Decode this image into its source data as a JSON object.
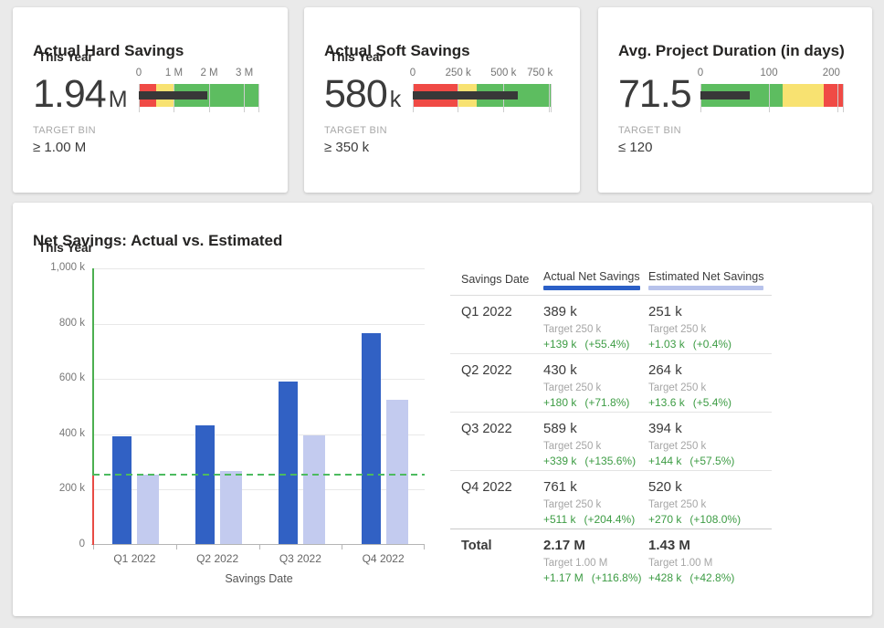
{
  "colors": {
    "background": "#eaeaea",
    "card_accent_green": "#4aa84e",
    "status_red": "#f04a45",
    "status_yellow": "#f8e271",
    "status_green": "#5dbd60",
    "measure_bar_dark": "#383838",
    "axis_green": "#4caf50",
    "axis_red": "#e84b45",
    "delta_text_green": "#3d9c44"
  },
  "chart_data": [
    {
      "id": "actual-hard-savings-kpi",
      "type": "bullet",
      "title": "Actual Hard Savings",
      "subtitle": "This Year",
      "value_display": "1.94",
      "unit": "M",
      "value": 1940000,
      "axis_max": 3400000,
      "ticks": [
        {
          "value": 0,
          "label": "0"
        },
        {
          "value": 1000000,
          "label": "1 M"
        },
        {
          "value": 2000000,
          "label": "2 M"
        },
        {
          "value": 3000000,
          "label": "3 M"
        }
      ],
      "bands": [
        {
          "status": "red",
          "from": 0,
          "to": 500000,
          "color": "#f04a45"
        },
        {
          "status": "yellow",
          "from": 500000,
          "to": 1000000,
          "color": "#f8e271"
        },
        {
          "status": "green",
          "from": 1000000,
          "to": 3400000,
          "color": "#5dbd60"
        }
      ],
      "target_bin_label": "TARGET BIN",
      "target_bin": "≥ 1.00 M"
    },
    {
      "id": "actual-soft-savings-kpi",
      "type": "bullet",
      "title": "Actual Soft Savings",
      "subtitle": "This Year",
      "value_display": "580",
      "unit": "k",
      "value": 580000,
      "axis_max": 760000,
      "ticks": [
        {
          "value": 0,
          "label": "0"
        },
        {
          "value": 250000,
          "label": "250 k"
        },
        {
          "value": 500000,
          "label": "500 k"
        },
        {
          "value": 750000,
          "label": "750 k"
        }
      ],
      "bands": [
        {
          "status": "red",
          "from": 0,
          "to": 250000,
          "color": "#f04a45"
        },
        {
          "status": "yellow",
          "from": 250000,
          "to": 350000,
          "color": "#f8e271"
        },
        {
          "status": "green",
          "from": 350000,
          "to": 760000,
          "color": "#5dbd60"
        }
      ],
      "target_bin_label": "TARGET BIN",
      "target_bin": "≥ 350 k"
    },
    {
      "id": "avg-project-duration-kpi",
      "type": "bullet",
      "title": "Avg. Project Duration (in days)",
      "value_display": "71.5",
      "value": 71.5,
      "axis_max": 208,
      "ticks": [
        {
          "value": 0,
          "label": "0"
        },
        {
          "value": 100,
          "label": "100"
        },
        {
          "value": 200,
          "label": "200"
        }
      ],
      "bands": [
        {
          "status": "green",
          "from": 0,
          "to": 120,
          "color": "#5dbd60"
        },
        {
          "status": "yellow",
          "from": 120,
          "to": 180,
          "color": "#f8e271"
        },
        {
          "status": "red",
          "from": 180,
          "to": 208,
          "color": "#f04a45"
        }
      ],
      "target_bin_label": "TARGET BIN",
      "target_bin": "≤ 120"
    },
    {
      "id": "net-savings-bar-chart",
      "type": "bar",
      "title": "Net Savings: Actual vs. Estimated",
      "subtitle": "This Year",
      "xlabel": "Savings Date",
      "grid": true,
      "categories": [
        "Q1 2022",
        "Q2 2022",
        "Q3 2022",
        "Q4 2022"
      ],
      "series": [
        {
          "name": "Actual Net Savings",
          "color": "#3161c4",
          "legend_color": "#2b5fc7",
          "values": [
            389000,
            430000,
            589000,
            761000
          ]
        },
        {
          "name": "Estimated Net Savings",
          "color": "#c3cbef",
          "legend_color": "#b7c2eb",
          "values": [
            251000,
            264000,
            394000,
            520000
          ]
        }
      ],
      "target": 250000,
      "target_line_color": "#4dbb5f",
      "ylim": [
        0,
        1000000
      ],
      "yticks": [
        {
          "value": 0,
          "label": "0"
        },
        {
          "value": 200000,
          "label": "200 k"
        },
        {
          "value": 400000,
          "label": "400 k"
        },
        {
          "value": 600000,
          "label": "600 k"
        },
        {
          "value": 800000,
          "label": "800 k"
        },
        {
          "value": 1000000,
          "label": "1,000 k"
        }
      ]
    },
    {
      "id": "net-savings-table",
      "type": "table",
      "columns": [
        "Savings Date",
        "Actual Net Savings",
        "Estimated Net Savings"
      ],
      "rows": [
        {
          "label": "Q1 2022",
          "actual": {
            "value": "389 k",
            "target": "Target 250 k",
            "delta": "+139 k",
            "delta_pct": "(+55.4%)"
          },
          "estimated": {
            "value": "251 k",
            "target": "Target 250 k",
            "delta": "+1.03 k",
            "delta_pct": "(+0.4%)"
          }
        },
        {
          "label": "Q2 2022",
          "actual": {
            "value": "430 k",
            "target": "Target 250 k",
            "delta": "+180 k",
            "delta_pct": "(+71.8%)"
          },
          "estimated": {
            "value": "264 k",
            "target": "Target 250 k",
            "delta": "+13.6 k",
            "delta_pct": "(+5.4%)"
          }
        },
        {
          "label": "Q3 2022",
          "actual": {
            "value": "589 k",
            "target": "Target 250 k",
            "delta": "+339 k",
            "delta_pct": "(+135.6%)"
          },
          "estimated": {
            "value": "394 k",
            "target": "Target 250 k",
            "delta": "+144 k",
            "delta_pct": "(+57.5%)"
          }
        },
        {
          "label": "Q4 2022",
          "actual": {
            "value": "761 k",
            "target": "Target 250 k",
            "delta": "+511 k",
            "delta_pct": "(+204.4%)"
          },
          "estimated": {
            "value": "520 k",
            "target": "Target 250 k",
            "delta": "+270 k",
            "delta_pct": "(+108.0%)"
          }
        },
        {
          "label": "Total",
          "actual": {
            "value": "2.17 M",
            "target": "Target 1.00 M",
            "delta": "+1.17 M",
            "delta_pct": "(+116.8%)"
          },
          "estimated": {
            "value": "1.43 M",
            "target": "Target 1.00 M",
            "delta": "+428 k",
            "delta_pct": "(+42.8%)"
          }
        }
      ]
    }
  ]
}
